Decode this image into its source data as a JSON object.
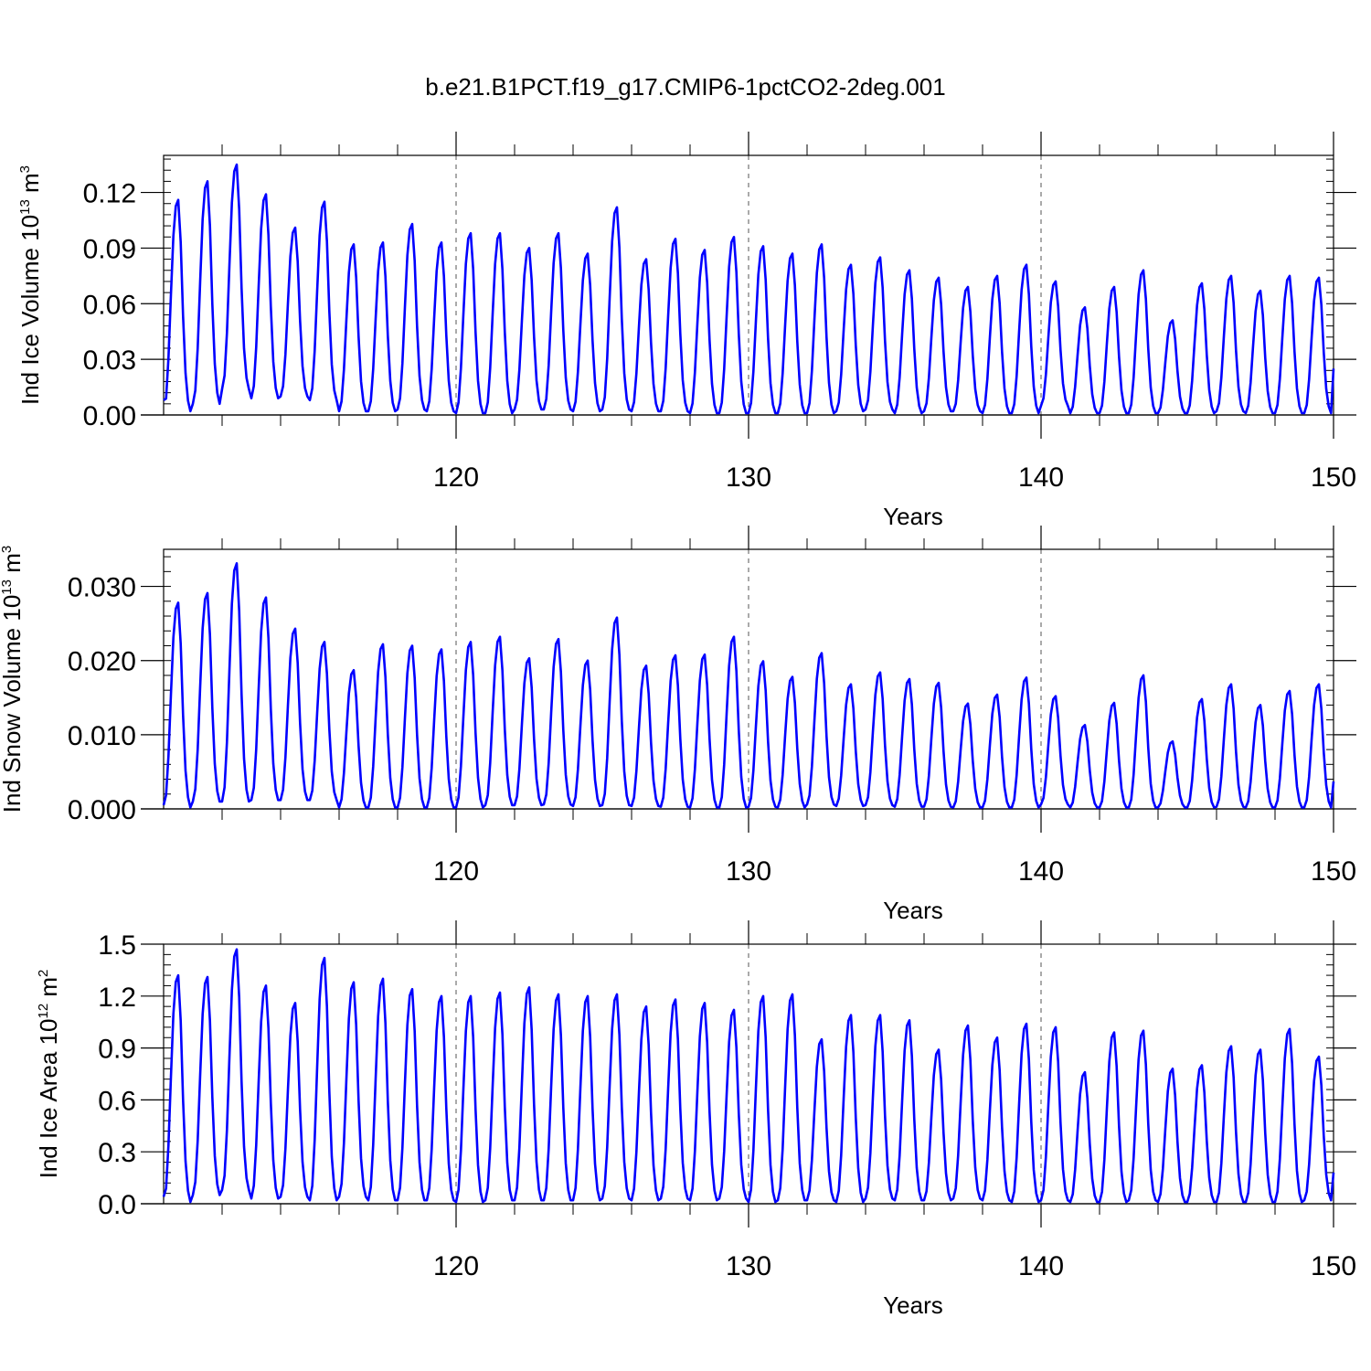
{
  "title": "b.e21.B1PCT.f19_g17.CMIP6-1pctCO2-2deg.001",
  "colors": {
    "series": "#0000ff",
    "axis": "#000000",
    "grid": "#555555"
  },
  "chart_data": [
    {
      "type": "line",
      "title": "b.e21.B1PCT.f19_g17.CMIP6-1pctCO2-2deg.001",
      "xlabel": "Years",
      "ylabel": {
        "text": "Ind Ice Volume 10",
        "sup": "13",
        "unit": " m",
        "unit_sup": "3"
      },
      "xlim": [
        110.0,
        150.0
      ],
      "ylim": [
        0.0,
        0.14
      ],
      "xticks": [
        120,
        130,
        140,
        150
      ],
      "xtick_labels": [
        "120",
        "130",
        "140",
        "150"
      ],
      "yticks": [
        0.0,
        0.03,
        0.06,
        0.09,
        0.12
      ],
      "ytick_labels": [
        "0.00",
        "0.03",
        "0.06",
        "0.09",
        "0.12"
      ],
      "yminor": 0.006,
      "vgrid": [
        120,
        130,
        140
      ],
      "series": [
        {
          "peaks": [
            0.116,
            0.126,
            0.135,
            0.119,
            0.101,
            0.115,
            0.092,
            0.093,
            0.103,
            0.093,
            0.098,
            0.098,
            0.09,
            0.098,
            0.087,
            0.112,
            0.084,
            0.095,
            0.089,
            0.096,
            0.091,
            0.087,
            0.092,
            0.081,
            0.085,
            0.078,
            0.074,
            0.069,
            0.075,
            0.081,
            0.072,
            0.058,
            0.069,
            0.078,
            0.051,
            0.071,
            0.075,
            0.067,
            0.075,
            0.074
          ],
          "mins": [
            0.002,
            0.006,
            0.014,
            0.009,
            0.01,
            0.008,
            0.002,
            0.002,
            0.003,
            0.002,
            0.001,
            0.001,
            0.003,
            0.003,
            0.002,
            0.003,
            0.002,
            0.002,
            0.001,
            0.001,
            0.001,
            0.001,
            0.001,
            0.002,
            0.003,
            0.001,
            0.002,
            0.002,
            0.001,
            0.001,
            0.005,
            0.001,
            0.001,
            0.001,
            0.001,
            0.001,
            0.002,
            0.001,
            0.001,
            0.001
          ],
          "start": 0.008,
          "end": 0.025
        }
      ]
    },
    {
      "type": "line",
      "xlabel": "Years",
      "ylabel": {
        "text": "Ind Snow Volume 10",
        "sup": "13",
        "unit": " m",
        "unit_sup": "3"
      },
      "xlim": [
        110.0,
        150.0
      ],
      "ylim": [
        0.0,
        0.035
      ],
      "xticks": [
        120,
        130,
        140,
        150
      ],
      "xtick_labels": [
        "120",
        "130",
        "140",
        "150"
      ],
      "yticks": [
        0.0,
        0.01,
        0.02,
        0.03
      ],
      "ytick_labels": [
        "0.000",
        "0.010",
        "0.020",
        "0.030"
      ],
      "yminor": 0.002,
      "vgrid": [
        120,
        130,
        140
      ],
      "series": [
        {
          "peaks": [
            0.0278,
            0.0291,
            0.0331,
            0.0285,
            0.0243,
            0.0225,
            0.0187,
            0.0222,
            0.022,
            0.0215,
            0.0225,
            0.0232,
            0.0203,
            0.0229,
            0.02,
            0.0258,
            0.0193,
            0.0207,
            0.0208,
            0.0232,
            0.0199,
            0.0178,
            0.021,
            0.0168,
            0.0184,
            0.0175,
            0.017,
            0.0142,
            0.0154,
            0.0177,
            0.0152,
            0.0113,
            0.0143,
            0.018,
            0.0091,
            0.0148,
            0.0168,
            0.014,
            0.0159,
            0.0168
          ],
          "mins": [
            0.0002,
            0.001,
            0.001,
            0.0012,
            0.0012,
            0.0012,
            0.0002,
            0.0002,
            0.0002,
            0.0002,
            0.0002,
            0.0005,
            0.0005,
            0.0006,
            0.0004,
            0.0005,
            0.0004,
            0.0003,
            0.0002,
            0.0002,
            0.0003,
            0.0002,
            0.0006,
            0.0004,
            0.0005,
            0.0003,
            0.0003,
            0.0002,
            0.0002,
            0.0002,
            0.0006,
            0.0002,
            0.0002,
            0.0002,
            0.0002,
            0.0002,
            0.0003,
            0.0002,
            0.0002,
            0.0002
          ],
          "start": 0.0005,
          "end": 0.0037
        }
      ]
    },
    {
      "type": "line",
      "xlabel": "Years",
      "ylabel": {
        "text": "Ind Ice Area 10",
        "sup": "12",
        "unit": " m",
        "unit_sup": "2"
      },
      "xlim": [
        110.0,
        150.0
      ],
      "ylim": [
        0.0,
        1.5
      ],
      "xticks": [
        120,
        130,
        140,
        150
      ],
      "xtick_labels": [
        "120",
        "130",
        "140",
        "150"
      ],
      "yticks": [
        0.0,
        0.3,
        0.6,
        0.9,
        1.2,
        1.5
      ],
      "ytick_labels": [
        "0.0",
        "0.3",
        "0.6",
        "0.9",
        "1.2",
        "1.5"
      ],
      "yminor": 0.06,
      "vgrid": [
        120,
        130,
        140
      ],
      "series": [
        {
          "peaks": [
            1.32,
            1.31,
            1.47,
            1.26,
            1.16,
            1.42,
            1.28,
            1.3,
            1.24,
            1.2,
            1.2,
            1.22,
            1.25,
            1.21,
            1.2,
            1.21,
            1.14,
            1.18,
            1.16,
            1.12,
            1.2,
            1.21,
            0.95,
            1.09,
            1.09,
            1.06,
            0.89,
            1.03,
            0.96,
            1.04,
            1.02,
            0.76,
            0.99,
            1.0,
            0.78,
            0.8,
            0.91,
            0.89,
            1.01,
            0.85
          ],
          "mins": [
            0.01,
            0.05,
            0.08,
            0.03,
            0.04,
            0.02,
            0.04,
            0.02,
            0.02,
            0.02,
            0.01,
            0.02,
            0.02,
            0.02,
            0.02,
            0.03,
            0.02,
            0.03,
            0.02,
            0.03,
            0.01,
            0.02,
            0.02,
            0.01,
            0.03,
            0.02,
            0.02,
            0.03,
            0.02,
            0.01,
            0.02,
            0.01,
            0.01,
            0.02,
            0.01,
            0.01,
            0.01,
            0.01,
            0.01,
            0.02
          ],
          "start": 0.04,
          "end": 0.18
        }
      ]
    }
  ]
}
